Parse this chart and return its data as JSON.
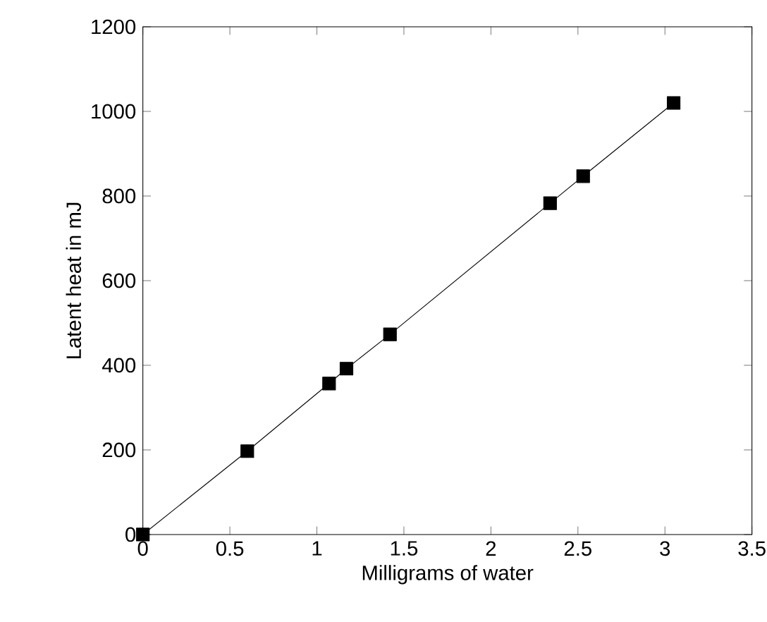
{
  "chart_data": {
    "type": "line",
    "xlabel": "Milligrams of water",
    "ylabel": "Latent heat in mJ",
    "x": [
      0,
      0.6,
      1.07,
      1.17,
      1.42,
      2.34,
      2.53,
      3.05
    ],
    "series": [
      {
        "color": "#000000",
        "values": [
          0,
          197,
          357,
          392,
          473,
          783,
          847,
          1020
        ]
      }
    ],
    "marker": "square",
    "line_style": "solid",
    "grid": false,
    "xlim": [
      0,
      3.5
    ],
    "xticks": [
      0,
      0.5,
      1,
      1.5,
      2,
      2.5,
      3,
      3.5
    ],
    "ylim": [
      0,
      1200
    ],
    "yticks": [
      0,
      200,
      400,
      600,
      800,
      1000,
      1200
    ]
  }
}
